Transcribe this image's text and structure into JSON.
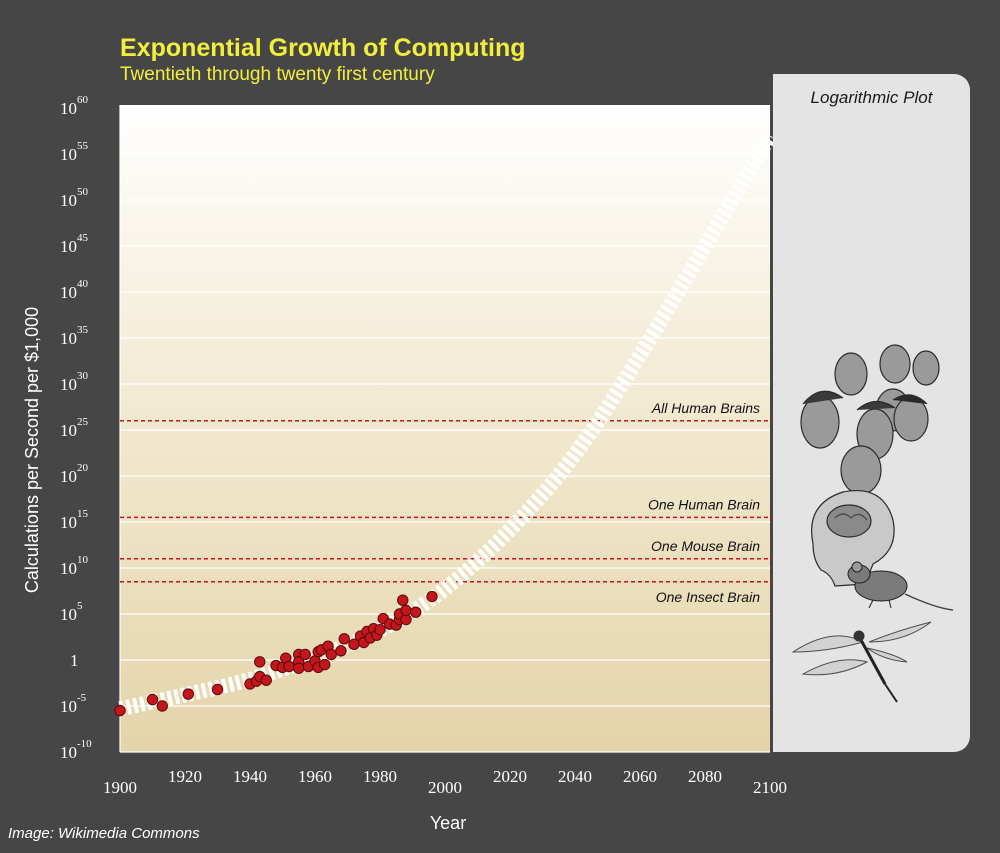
{
  "header": {
    "title": "Exponential Growth of Computing",
    "subtitle": "Twentieth through twenty first century"
  },
  "side_panel": {
    "title": "Logarithmic Plot",
    "illustrations": [
      "group-of-human-heads",
      "human-brain-profile",
      "mouse",
      "dragonfly"
    ]
  },
  "credit": "Image: Wikimedia Commons",
  "colors": {
    "background": "#464646",
    "plot_top": "#ffffff",
    "plot_bottom": "#e4d4a9",
    "grid": "#ffffff",
    "points": "#c3161d",
    "reference_lines": "#c3161d",
    "title": "#f2ef3c",
    "trend": "#ffffff"
  },
  "chart_data": {
    "type": "scatter",
    "title": "Exponential Growth of Computing",
    "subtitle": "Twentieth through twenty first century",
    "xlabel": "Year",
    "ylabel": "Calculations per Second per $1,000",
    "x_scale": "linear",
    "y_scale": "log10",
    "xlim": [
      1900,
      2100
    ],
    "ylim_exponent": [
      -10,
      60
    ],
    "x_ticks": [
      1900,
      1920,
      1940,
      1960,
      1980,
      2000,
      2020,
      2040,
      2060,
      2080,
      2100
    ],
    "y_ticks": [
      {
        "base": "10",
        "exp": "60",
        "value_exp": 60
      },
      {
        "base": "10",
        "exp": "55",
        "value_exp": 55
      },
      {
        "base": "10",
        "exp": "50",
        "value_exp": 50
      },
      {
        "base": "10",
        "exp": "45",
        "value_exp": 45
      },
      {
        "base": "10",
        "exp": "40",
        "value_exp": 40
      },
      {
        "base": "10",
        "exp": "35",
        "value_exp": 35
      },
      {
        "base": "10",
        "exp": "30",
        "value_exp": 30
      },
      {
        "base": "10",
        "exp": "25",
        "value_exp": 25
      },
      {
        "base": "10",
        "exp": "20",
        "value_exp": 20
      },
      {
        "base": "10",
        "exp": "15",
        "value_exp": 15
      },
      {
        "base": "10",
        "exp": "10",
        "value_exp": 10
      },
      {
        "base": "10",
        "exp": "5",
        "value_exp": 5
      },
      {
        "base": "1",
        "exp": "",
        "value_exp": 0
      },
      {
        "base": "10",
        "exp": "-5",
        "value_exp": -5
      },
      {
        "base": "10",
        "exp": "-10",
        "value_exp": -10
      }
    ],
    "grid": true,
    "series": [
      {
        "points": [
          [
            1900,
            -5.5
          ],
          [
            1910,
            -4.3
          ],
          [
            1913,
            -5.0
          ],
          [
            1921,
            -3.7
          ],
          [
            1930,
            -3.2
          ],
          [
            1940,
            -2.6
          ],
          [
            1942,
            -2.3
          ],
          [
            1943,
            -1.8
          ],
          [
            1943,
            -0.2
          ],
          [
            1945,
            -2.2
          ],
          [
            1948,
            -0.6
          ],
          [
            1950,
            -0.8
          ],
          [
            1951,
            0.2
          ],
          [
            1952,
            -0.7
          ],
          [
            1955,
            0.6
          ],
          [
            1955,
            -0.2
          ],
          [
            1955,
            -0.9
          ],
          [
            1957,
            0.6
          ],
          [
            1958,
            -0.7
          ],
          [
            1960,
            -0.1
          ],
          [
            1961,
            0.9
          ],
          [
            1961,
            -0.8
          ],
          [
            1962,
            1.1
          ],
          [
            1963,
            -0.5
          ],
          [
            1964,
            1.5
          ],
          [
            1965,
            0.6
          ],
          [
            1968,
            1.0
          ],
          [
            1969,
            2.3
          ],
          [
            1972,
            1.7
          ],
          [
            1974,
            2.6
          ],
          [
            1975,
            1.9
          ],
          [
            1976,
            3.1
          ],
          [
            1977,
            2.4
          ],
          [
            1978,
            3.4
          ],
          [
            1979,
            2.7
          ],
          [
            1980,
            3.3
          ],
          [
            1981,
            4.5
          ],
          [
            1983,
            3.9
          ],
          [
            1985,
            3.8
          ],
          [
            1986,
            4.4
          ],
          [
            1986,
            5.0
          ],
          [
            1987,
            6.5
          ],
          [
            1988,
            4.4
          ],
          [
            1988,
            5.4
          ],
          [
            1991,
            5.2
          ],
          [
            1996,
            6.9
          ]
        ]
      }
    ],
    "trend_line": {
      "style": "dashed-white-band",
      "points": [
        [
          1900,
          -5.3
        ],
        [
          1920,
          -3.8
        ],
        [
          1940,
          -2.2
        ],
        [
          1960,
          0.2
        ],
        [
          1980,
          3.0
        ],
        [
          2000,
          7.5
        ],
        [
          2020,
          14.0
        ],
        [
          2040,
          22.0
        ],
        [
          2060,
          33.0
        ],
        [
          2080,
          45.0
        ],
        [
          2100,
          57.0
        ]
      ]
    },
    "reference_lines": [
      {
        "label": "All Human Brains",
        "y_exp": 26
      },
      {
        "label": "One Human Brain",
        "y_exp": 15.5
      },
      {
        "label": "One Mouse Brain",
        "y_exp": 11
      },
      {
        "label": "One Insect Brain",
        "y_exp": 8.5
      }
    ]
  }
}
